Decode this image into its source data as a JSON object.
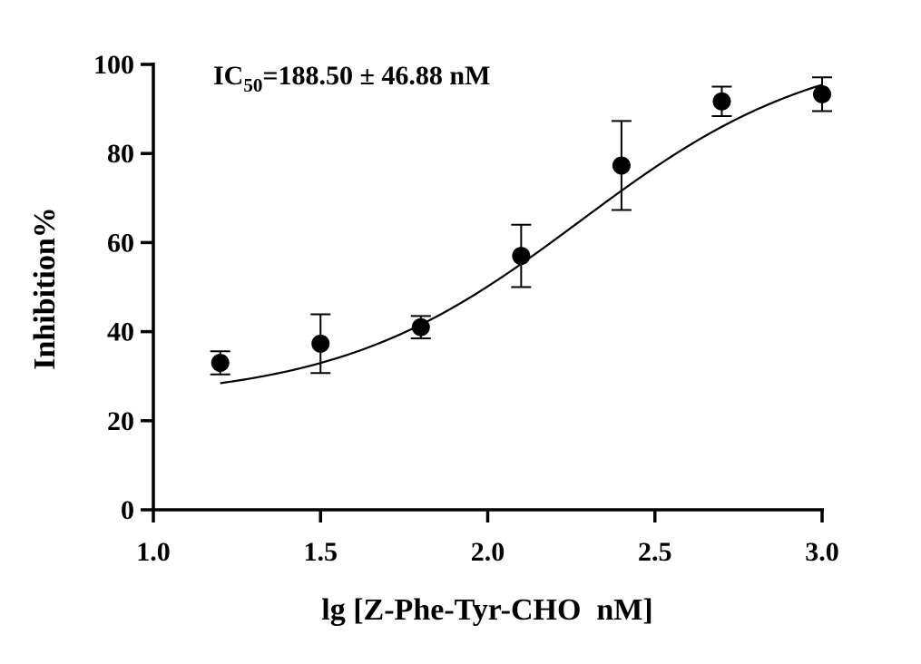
{
  "chart_data": {
    "type": "scatter",
    "xlabel": "lg [Z-Phe-Tyr-CHO  nM]",
    "ylabel": "Inhibition%",
    "annotation": {
      "prefix": "IC",
      "subscript": "50",
      "suffix": "=188.50 ± 46.88 nM"
    },
    "xlim": [
      1.0,
      3.0
    ],
    "ylim": [
      0,
      100
    ],
    "xticks": [
      "1.0",
      "1.5",
      "2.0",
      "2.5",
      "3.0"
    ],
    "yticks": [
      "0",
      "20",
      "40",
      "60",
      "80",
      "100"
    ],
    "grid": false,
    "points": [
      {
        "x": 1.2,
        "y": 33.0,
        "err": 2.6
      },
      {
        "x": 1.5,
        "y": 37.3,
        "err": 6.6
      },
      {
        "x": 1.8,
        "y": 41.0,
        "err": 2.5
      },
      {
        "x": 2.1,
        "y": 57.0,
        "err": 7.0
      },
      {
        "x": 2.4,
        "y": 77.3,
        "err": 10.0
      },
      {
        "x": 2.7,
        "y": 91.7,
        "err": 3.3
      },
      {
        "x": 3.0,
        "y": 93.3,
        "err": 3.8
      }
    ],
    "fit": {
      "bottom": 24.5,
      "top": 105,
      "logEC50": 2.275,
      "hillSlope": 1.2,
      "x_range": [
        1.2,
        3.0
      ]
    }
  }
}
